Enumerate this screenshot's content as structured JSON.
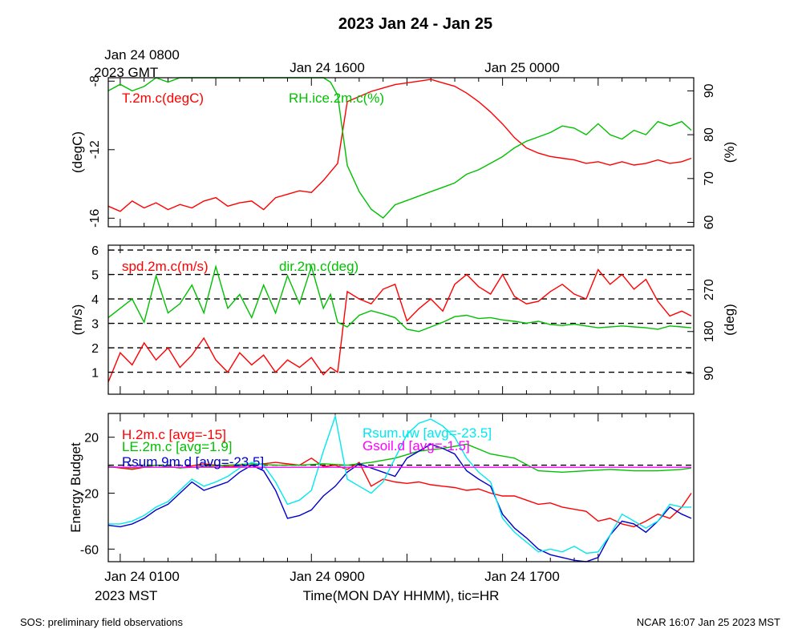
{
  "page": {
    "title": "2023 Jan 24 - Jan 25",
    "top_axis": {
      "labels": [
        "Jan 24 0800",
        "Jan 24 1600",
        "Jan 25 0000"
      ],
      "sub_label": "2023 GMT"
    },
    "bottom_axis": {
      "labels": [
        "Jan 24 0100",
        "Jan 24 0900",
        "Jan 24 1700"
      ],
      "sub_label": "2023 MST",
      "xlabel": "Time(MON DAY HHMM), tic=HR"
    },
    "footer_left": "SOS: preliminary field observations",
    "footer_right": "NCAR 16:07 Jan 25 2023 MST"
  },
  "colors": {
    "red": "#ff0000",
    "green": "#00c000",
    "blue": "#0000cc",
    "cyan": "#00e8f0",
    "magenta": "#ff00ff",
    "black": "#000000"
  },
  "chart_data": [
    {
      "type": "line",
      "x_unit": "hours since Jan 24 0000 MST",
      "xlim": [
        0,
        24.5
      ],
      "ylabel": "(degC)",
      "ylim": [
        -16.5,
        -7.8
      ],
      "yticks": [
        -16,
        -12,
        -8
      ],
      "ylabel_right": "(%)",
      "ylim_right": [
        59,
        93
      ],
      "yticks_right": [
        60,
        70,
        80,
        90
      ],
      "series": [
        {
          "name": "T.2m.c(degC)",
          "axis": "left",
          "color": "#ff0000",
          "x": [
            0,
            0.5,
            1,
            1.5,
            2,
            2.5,
            3,
            3.5,
            4,
            4.5,
            5,
            5.5,
            6,
            6.5,
            7,
            7.5,
            8,
            8.5,
            9,
            9.3,
            9.6,
            10,
            10.5,
            11,
            11.5,
            12,
            12.5,
            13,
            13.5,
            14,
            14.5,
            15,
            15.5,
            16,
            16.5,
            17,
            17.5,
            18,
            18.5,
            19,
            19.5,
            20,
            20.5,
            21,
            21.5,
            22,
            22.5,
            23,
            23.5,
            24,
            24.4
          ],
          "y": [
            -15.3,
            -15.6,
            -15.0,
            -15.4,
            -15.1,
            -15.5,
            -15.2,
            -15.4,
            -15.0,
            -14.8,
            -15.3,
            -15.1,
            -15.0,
            -15.5,
            -14.8,
            -14.6,
            -14.4,
            -14.5,
            -13.8,
            -13.3,
            -12.8,
            -9.2,
            -8.9,
            -8.6,
            -8.4,
            -8.2,
            -8.1,
            -8.0,
            -7.9,
            -8.1,
            -8.3,
            -8.7,
            -9.2,
            -9.8,
            -10.5,
            -11.3,
            -11.9,
            -12.2,
            -12.4,
            -12.5,
            -12.6,
            -12.8,
            -12.7,
            -12.9,
            -12.7,
            -12.9,
            -12.8,
            -12.6,
            -12.8,
            -12.7,
            -12.5
          ]
        },
        {
          "name": "RH.ice.2m.c(%)",
          "axis": "right",
          "color": "#00c000",
          "x": [
            0,
            0.5,
            1,
            1.5,
            2,
            2.5,
            3,
            3.5,
            4,
            4.5,
            5,
            5.5,
            6,
            6.5,
            7,
            7.5,
            8,
            8.5,
            9,
            9.3,
            9.6,
            10,
            10.5,
            11,
            11.5,
            12,
            12.5,
            13,
            13.5,
            14,
            14.5,
            15,
            15.5,
            16,
            16.5,
            17,
            17.5,
            18,
            18.5,
            19,
            19.5,
            20,
            20.5,
            21,
            21.5,
            22,
            22.5,
            23,
            23.5,
            24,
            24.4
          ],
          "y": [
            90,
            91.5,
            90,
            91,
            93,
            92,
            93,
            93,
            93,
            93,
            93,
            93,
            93,
            93,
            93,
            93,
            93,
            93,
            93,
            92,
            89,
            73,
            67,
            63,
            61,
            64,
            65,
            66,
            67,
            68,
            69,
            71,
            72,
            73.5,
            75,
            77,
            78.5,
            79.5,
            80.5,
            82,
            81.5,
            80,
            82.5,
            80,
            79,
            81,
            80,
            83,
            82,
            83,
            81
          ]
        }
      ],
      "legend": [
        "T.2m.c(degC)",
        "RH.ice.2m.c(%)"
      ]
    },
    {
      "type": "line",
      "x_unit": "hours since Jan 24 0000 MST",
      "xlim": [
        0,
        24.5
      ],
      "ylabel": "(m/s)",
      "ylim": [
        0.1,
        6.2
      ],
      "yticks": [
        1,
        2,
        3,
        4,
        5,
        6
      ],
      "dashed_lines": [
        1,
        2,
        3,
        4,
        5,
        6
      ],
      "ylabel_right": "(deg)",
      "ylim_right": [
        45,
        366
      ],
      "yticks_right": [
        90,
        180,
        270
      ],
      "series": [
        {
          "name": "spd.2m.c(m/s)",
          "axis": "left",
          "color": "#ff0000",
          "x": [
            0,
            0.5,
            1,
            1.5,
            2,
            2.5,
            3,
            3.5,
            4,
            4.5,
            5,
            5.5,
            6,
            6.5,
            7,
            7.5,
            8,
            8.5,
            9,
            9.3,
            9.6,
            10,
            10.5,
            11,
            11.5,
            12,
            12.5,
            13,
            13.5,
            14,
            14.5,
            15,
            15.5,
            16,
            16.5,
            17,
            17.5,
            18,
            18.5,
            19,
            19.5,
            20,
            20.5,
            21,
            21.5,
            22,
            22.5,
            23,
            23.5,
            24,
            24.4
          ],
          "y": [
            0.6,
            1.8,
            1.3,
            2.2,
            1.5,
            2.0,
            1.2,
            1.7,
            2.4,
            1.5,
            1.0,
            1.8,
            1.3,
            1.7,
            1.0,
            1.5,
            1.2,
            1.6,
            0.9,
            1.2,
            1.0,
            4.3,
            4.0,
            3.8,
            4.4,
            4.6,
            3.1,
            3.6,
            4.0,
            3.5,
            4.6,
            5.0,
            4.5,
            4.2,
            5.0,
            4.1,
            3.8,
            3.9,
            4.3,
            4.6,
            4.2,
            4.0,
            5.2,
            4.6,
            5.0,
            4.4,
            4.8,
            3.9,
            3.3,
            3.5,
            3.3
          ]
        },
        {
          "name": "dir.2m.c(deg)",
          "axis": "right",
          "color": "#00c000",
          "x": [
            0,
            0.5,
            1,
            1.5,
            2,
            2.5,
            3,
            3.5,
            4,
            4.5,
            5,
            5.5,
            6,
            6.5,
            7,
            7.5,
            8,
            8.5,
            9,
            9.3,
            9.6,
            10,
            10.5,
            11,
            11.5,
            12,
            12.5,
            13,
            13.5,
            14,
            14.5,
            15,
            15.5,
            16,
            16.5,
            17,
            17.5,
            18,
            18.5,
            19,
            19.5,
            20,
            20.5,
            21,
            21.5,
            22,
            22.5,
            23,
            23.5,
            24,
            24.4
          ],
          "y": [
            210,
            230,
            250,
            200,
            300,
            220,
            240,
            280,
            220,
            320,
            230,
            260,
            210,
            280,
            220,
            300,
            240,
            320,
            230,
            260,
            200,
            190,
            215,
            225,
            218,
            210,
            185,
            180,
            190,
            200,
            212,
            215,
            208,
            210,
            205,
            202,
            198,
            202,
            195,
            193,
            196,
            192,
            188,
            190,
            192,
            190,
            188,
            185,
            192,
            190,
            188
          ]
        }
      ],
      "legend": [
        "spd.2m.c(m/s)",
        "dir.2m.c(deg)"
      ]
    },
    {
      "type": "line",
      "x_unit": "hours since Jan 24 0000 MST",
      "xlim": [
        0,
        24.5
      ],
      "ylabel": "Energy Budget",
      "ylim": [
        -69,
        37
      ],
      "yticks": [
        -60,
        -20,
        20
      ],
      "dashed_lines": [
        0
      ],
      "series": [
        {
          "name": "H.2m.c [avg=-15]",
          "color": "#ff0000",
          "x": [
            0,
            1,
            2,
            3,
            4,
            5,
            6,
            7,
            8,
            8.5,
            9,
            9.5,
            10,
            10.5,
            11,
            11.5,
            12,
            12.5,
            13,
            13.5,
            14,
            14.5,
            15,
            15.5,
            16,
            16.5,
            17,
            17.5,
            18,
            18.5,
            19,
            20,
            20.5,
            21,
            21.5,
            22,
            22.5,
            23,
            23.5,
            24,
            24.4
          ],
          "y": [
            -1,
            -3,
            0,
            -2,
            1,
            -1,
            0,
            2,
            0,
            5,
            -1,
            0,
            -3,
            2,
            -15,
            -10,
            -12,
            -13,
            -12,
            -14,
            -15,
            -16,
            -18,
            -17,
            -20,
            -22,
            -22,
            -25,
            -28,
            -27,
            -30,
            -33,
            -40,
            -38,
            -42,
            -44,
            -40,
            -35,
            -38,
            -30,
            -20
          ]
        },
        {
          "name": "LE.2m.c [avg=1.9]",
          "color": "#00c000",
          "x": [
            0,
            1,
            2,
            3,
            4,
            5,
            6,
            7,
            8,
            9,
            10,
            11,
            12,
            13,
            14,
            15,
            16,
            17,
            18,
            19,
            20,
            21,
            22,
            23,
            24,
            24.4
          ],
          "y": [
            -1,
            -2,
            0,
            -2,
            -1,
            0,
            1,
            0,
            0,
            1,
            0,
            2,
            5,
            10,
            12,
            15,
            8,
            5,
            -4,
            -5,
            -4,
            -3,
            -4,
            -4,
            -3,
            -2
          ]
        },
        {
          "name": "Rsum.9m.d [avg=-23.5]",
          "color": "#0000cc",
          "x": [
            0,
            0.5,
            1,
            1.5,
            2,
            2.5,
            3,
            3.5,
            4,
            4.5,
            5,
            5.5,
            6,
            6.5,
            7,
            7.5,
            8,
            8.5,
            9,
            9.5,
            10,
            10.5,
            11,
            11.5,
            12,
            12.5,
            13,
            13.5,
            14,
            14.5,
            15,
            15.5,
            16,
            16.5,
            17,
            17.5,
            18,
            18.5,
            19,
            19.5,
            20,
            20.5,
            21,
            21.5,
            22,
            22.5,
            23,
            23.5,
            24,
            24.4
          ],
          "y": [
            -43,
            -44,
            -42,
            -38,
            -32,
            -28,
            -20,
            -12,
            -18,
            -15,
            -12,
            -5,
            0,
            -4,
            -18,
            -38,
            -36,
            -32,
            -22,
            -15,
            -5,
            1,
            -2,
            -5,
            -8,
            5,
            10,
            15,
            12,
            8,
            -4,
            -10,
            -15,
            -35,
            -45,
            -52,
            -60,
            -64,
            -66,
            -68,
            -69,
            -66,
            -50,
            -40,
            -42,
            -48,
            -40,
            -30,
            -35,
            -38
          ]
        },
        {
          "name": "Rsum.uw [avg=-23.5]",
          "color": "#00e8f0",
          "x": [
            0,
            0.5,
            1,
            1.5,
            2,
            2.5,
            3,
            3.5,
            4,
            4.5,
            5,
            5.5,
            6,
            6.5,
            7,
            7.5,
            8,
            8.5,
            9,
            9.5,
            10,
            10.5,
            11,
            11.5,
            12,
            12.5,
            13,
            13.5,
            14,
            14.5,
            15,
            15.5,
            16,
            16.5,
            17,
            17.5,
            18,
            18.5,
            19,
            19.5,
            20,
            20.5,
            21,
            21.5,
            22,
            22.5,
            23,
            23.5,
            24,
            24.4
          ],
          "y": [
            -42,
            -42,
            -40,
            -36,
            -30,
            -26,
            -18,
            -10,
            -15,
            -12,
            -8,
            -2,
            2,
            0,
            -12,
            -28,
            -25,
            -18,
            10,
            35,
            -10,
            -15,
            -20,
            -12,
            5,
            22,
            30,
            33,
            28,
            20,
            5,
            -5,
            -12,
            -38,
            -48,
            -55,
            -62,
            -60,
            -62,
            -58,
            -63,
            -62,
            -50,
            -35,
            -40,
            -45,
            -40,
            -28,
            -30,
            -30
          ]
        },
        {
          "name": "Gsoil.d [avg=-1.5]",
          "color": "#ff00ff",
          "x": [
            0,
            24.4
          ],
          "y": [
            -1.5,
            -1.5
          ]
        }
      ],
      "legend": [
        "H.2m.c [avg=-15]",
        "LE.2m.c [avg=1.9]",
        "Rsum.9m.d [avg=-23.5]",
        "Rsum.uw [avg=-23.5]",
        "Gsoil.d [avg=-1.5]"
      ]
    }
  ]
}
